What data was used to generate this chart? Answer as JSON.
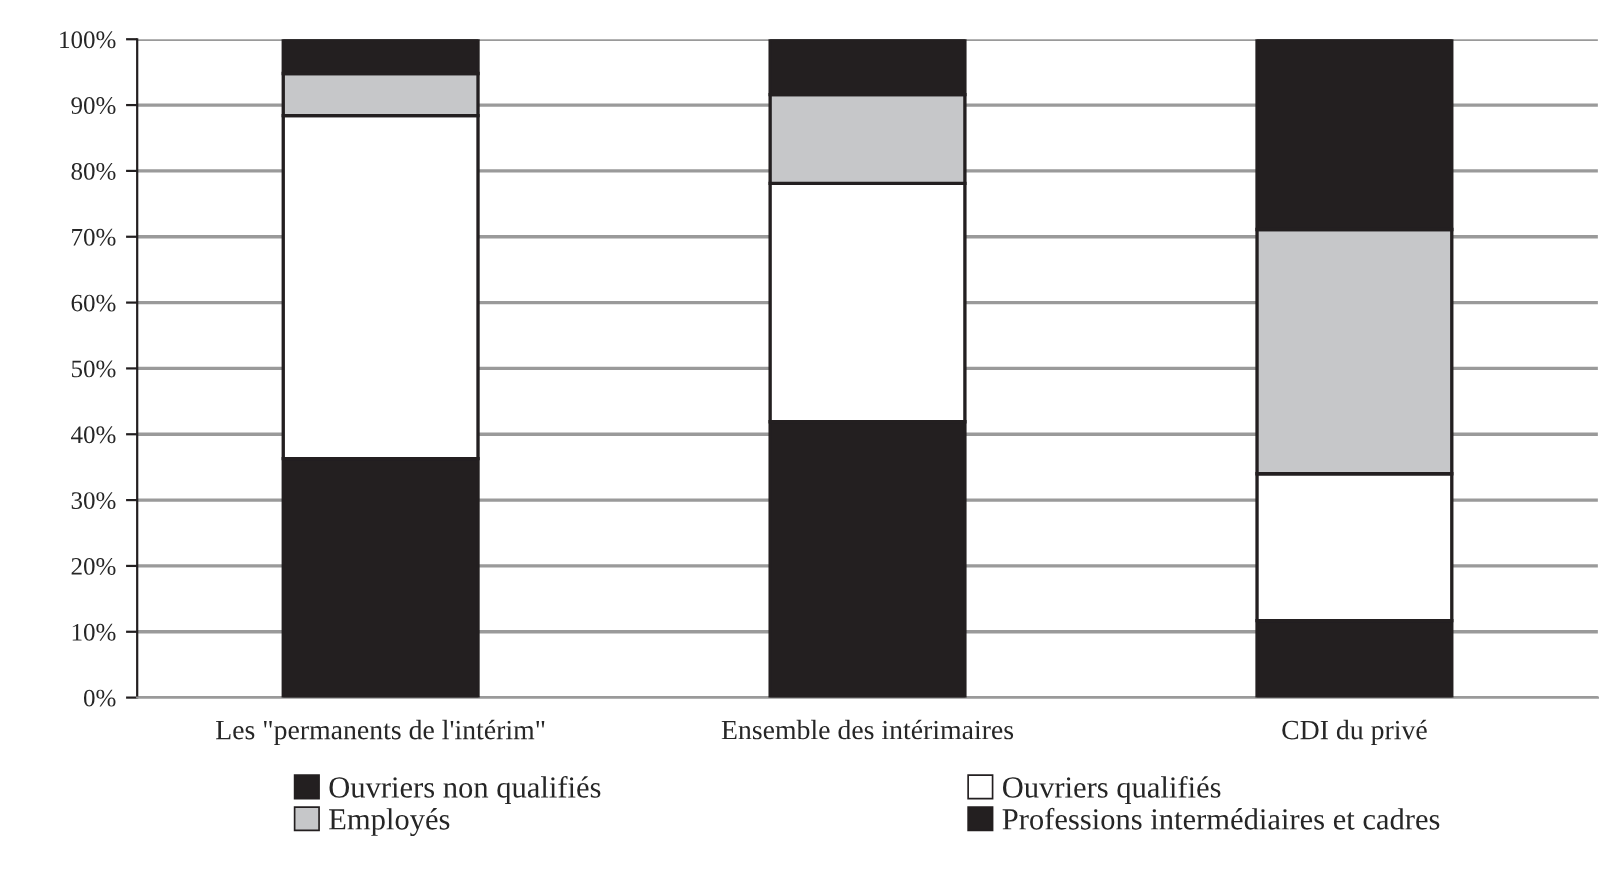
{
  "chart_data": {
    "type": "bar",
    "stacked": true,
    "categories": [
      "Les \"permanents de l'intérim\"",
      "Ensemble des intérimaires",
      "CDI du privé"
    ],
    "series": [
      {
        "name": "Ouvriers non qualifiés",
        "color": "#231f20",
        "values": [
          36.3,
          41.9,
          11.7
        ]
      },
      {
        "name": "Ouvriers qualifiés",
        "color": "#ffffff",
        "values": [
          52.1,
          36.2,
          22.3
        ]
      },
      {
        "name": "Employés",
        "color": "#c6c7c9",
        "values": [
          6.4,
          13.5,
          37.1
        ]
      },
      {
        "name": "Professions intermédiaires et cadres",
        "color": "#231f20",
        "values": [
          5.2,
          8.4,
          28.9
        ]
      }
    ],
    "ylim": [
      0,
      100
    ],
    "yticks": [
      {
        "value": 0,
        "label": "0%"
      },
      {
        "value": 10,
        "label": "10%"
      },
      {
        "value": 20,
        "label": "20%"
      },
      {
        "value": 30,
        "label": "30%"
      },
      {
        "value": 40,
        "label": "40%"
      },
      {
        "value": 50,
        "label": "50%"
      },
      {
        "value": 60,
        "label": "60%"
      },
      {
        "value": 70,
        "label": "70%"
      },
      {
        "value": 80,
        "label": "80%"
      },
      {
        "value": 90,
        "label": "90%"
      },
      {
        "value": 100,
        "label": "100%"
      }
    ],
    "grid": "y",
    "legend": "bottom"
  }
}
